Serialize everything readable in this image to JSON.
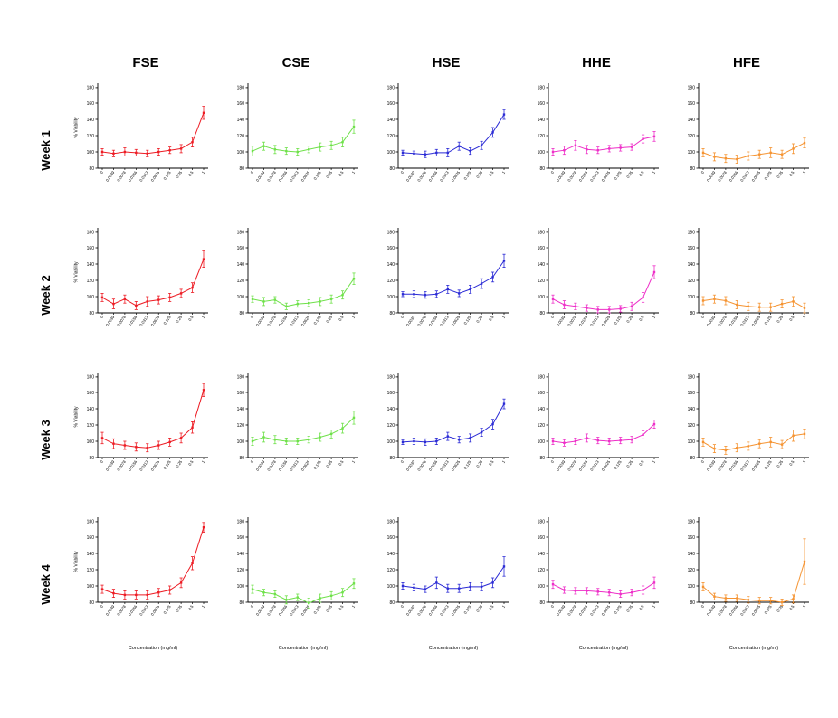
{
  "page": {
    "background": "#ffffff"
  },
  "columns": [
    {
      "label": "FSE",
      "color": "#ed1c24"
    },
    {
      "label": "CSE",
      "color": "#6fe14a"
    },
    {
      "label": "HSE",
      "color": "#2b2bd5"
    },
    {
      "label": "HHE",
      "color": "#ee2fc8"
    },
    {
      "label": "HFE",
      "color": "#f59331"
    }
  ],
  "rows": [
    {
      "label": "Week 1"
    },
    {
      "label": "Week 2"
    },
    {
      "label": "Week 3"
    },
    {
      "label": "Week 4"
    }
  ],
  "axis": {
    "ylabel": "% Viability",
    "xlabel": "Concentration (mg/ml)",
    "ylim": [
      80,
      180
    ],
    "yticks": [
      80,
      100,
      120,
      140,
      160,
      180
    ],
    "xticklabels": [
      "0",
      "0.0039",
      "0.0078",
      "0.0156",
      "0.0313",
      "0.0625",
      "0.125",
      "0.25",
      "0.5",
      "1"
    ]
  },
  "chart_data": [
    {
      "type": "line",
      "week": "Week 1",
      "series": "FSE",
      "x": [
        0,
        0.0039,
        0.0078,
        0.0156,
        0.0313,
        0.0625,
        0.125,
        0.25,
        0.5,
        1
      ],
      "values": [
        100,
        98,
        100,
        99,
        98,
        100,
        102,
        104,
        112,
        148
      ],
      "errors": [
        4,
        4,
        5,
        4,
        4,
        4,
        4,
        5,
        6,
        8
      ]
    },
    {
      "type": "line",
      "week": "Week 1",
      "series": "CSE",
      "x": [
        0,
        0.0039,
        0.0078,
        0.0156,
        0.0313,
        0.0625,
        0.125,
        0.25,
        0.5,
        1
      ],
      "values": [
        101,
        107,
        103,
        101,
        100,
        103,
        106,
        108,
        112,
        131
      ],
      "errors": [
        6,
        5,
        5,
        4,
        4,
        4,
        5,
        5,
        6,
        8
      ]
    },
    {
      "type": "line",
      "week": "Week 1",
      "series": "HSE",
      "x": [
        0,
        0.0039,
        0.0078,
        0.0156,
        0.0313,
        0.0625,
        0.125,
        0.25,
        0.5,
        1
      ],
      "values": [
        99,
        98,
        97,
        99,
        99,
        107,
        101,
        108,
        124,
        146
      ],
      "errors": [
        3,
        3,
        4,
        4,
        5,
        5,
        4,
        5,
        6,
        6
      ]
    },
    {
      "type": "line",
      "week": "Week 1",
      "series": "HHE",
      "x": [
        0,
        0.0039,
        0.0078,
        0.0156,
        0.0313,
        0.0625,
        0.125,
        0.25,
        0.5,
        1
      ],
      "values": [
        100,
        102,
        108,
        103,
        102,
        104,
        105,
        106,
        116,
        119
      ],
      "errors": [
        4,
        5,
        6,
        5,
        4,
        4,
        4,
        4,
        5,
        6
      ]
    },
    {
      "type": "line",
      "week": "Week 1",
      "series": "HFE",
      "x": [
        0,
        0.0039,
        0.0078,
        0.0156,
        0.0313,
        0.0625,
        0.125,
        0.25,
        0.5,
        1
      ],
      "values": [
        99,
        94,
        92,
        91,
        95,
        97,
        99,
        97,
        104,
        111
      ],
      "errors": [
        5,
        5,
        5,
        5,
        5,
        5,
        6,
        5,
        6,
        6
      ]
    },
    {
      "type": "line",
      "week": "Week 2",
      "series": "FSE",
      "x": [
        0,
        0.0039,
        0.0078,
        0.0156,
        0.0313,
        0.0625,
        0.125,
        0.25,
        0.5,
        1
      ],
      "values": [
        99,
        91,
        97,
        89,
        94,
        96,
        99,
        104,
        111,
        146
      ],
      "errors": [
        5,
        6,
        5,
        5,
        6,
        5,
        5,
        5,
        6,
        10
      ]
    },
    {
      "type": "line",
      "week": "Week 2",
      "series": "CSE",
      "x": [
        0,
        0.0039,
        0.0078,
        0.0156,
        0.0313,
        0.0625,
        0.125,
        0.25,
        0.5,
        1
      ],
      "values": [
        97,
        94,
        96,
        88,
        91,
        92,
        94,
        97,
        102,
        122
      ],
      "errors": [
        4,
        5,
        4,
        4,
        4,
        4,
        5,
        5,
        5,
        7
      ]
    },
    {
      "type": "line",
      "week": "Week 2",
      "series": "HSE",
      "x": [
        0,
        0.0039,
        0.0078,
        0.0156,
        0.0313,
        0.0625,
        0.125,
        0.25,
        0.5,
        1
      ],
      "values": [
        103,
        103,
        102,
        103,
        109,
        104,
        109,
        116,
        124,
        144
      ],
      "errors": [
        3,
        4,
        4,
        4,
        5,
        4,
        5,
        6,
        6,
        8
      ]
    },
    {
      "type": "line",
      "week": "Week 2",
      "series": "HHE",
      "x": [
        0,
        0.0039,
        0.0078,
        0.0156,
        0.0313,
        0.0625,
        0.125,
        0.25,
        0.5,
        1
      ],
      "values": [
        97,
        90,
        88,
        86,
        84,
        84,
        85,
        88,
        99,
        130
      ],
      "errors": [
        5,
        5,
        4,
        4,
        4,
        4,
        4,
        5,
        6,
        8
      ]
    },
    {
      "type": "line",
      "week": "Week 2",
      "series": "HFE",
      "x": [
        0,
        0.0039,
        0.0078,
        0.0156,
        0.0313,
        0.0625,
        0.125,
        0.25,
        0.5,
        1
      ],
      "values": [
        95,
        97,
        95,
        90,
        88,
        87,
        87,
        91,
        94,
        86
      ],
      "errors": [
        5,
        5,
        5,
        5,
        5,
        5,
        5,
        5,
        6,
        6
      ]
    },
    {
      "type": "line",
      "week": "Week 3",
      "series": "FSE",
      "x": [
        0,
        0.0039,
        0.0078,
        0.0156,
        0.0313,
        0.0625,
        0.125,
        0.25,
        0.5,
        1
      ],
      "values": [
        104,
        97,
        95,
        93,
        92,
        95,
        99,
        104,
        117,
        163
      ],
      "errors": [
        7,
        6,
        5,
        5,
        5,
        5,
        5,
        6,
        7,
        8
      ]
    },
    {
      "type": "line",
      "week": "Week 3",
      "series": "CSE",
      "x": [
        0,
        0.0039,
        0.0078,
        0.0156,
        0.0313,
        0.0625,
        0.125,
        0.25,
        0.5,
        1
      ],
      "values": [
        100,
        105,
        102,
        100,
        100,
        102,
        105,
        109,
        116,
        129
      ],
      "errors": [
        5,
        6,
        5,
        4,
        4,
        4,
        5,
        5,
        6,
        8
      ]
    },
    {
      "type": "line",
      "week": "Week 3",
      "series": "HSE",
      "x": [
        0,
        0.0039,
        0.0078,
        0.0156,
        0.0313,
        0.0625,
        0.125,
        0.25,
        0.5,
        1
      ],
      "values": [
        99,
        100,
        99,
        100,
        106,
        102,
        104,
        111,
        121,
        146
      ],
      "errors": [
        3,
        4,
        4,
        4,
        5,
        4,
        5,
        5,
        6,
        6
      ]
    },
    {
      "type": "line",
      "week": "Week 3",
      "series": "HHE",
      "x": [
        0,
        0.0039,
        0.0078,
        0.0156,
        0.0313,
        0.0625,
        0.125,
        0.25,
        0.5,
        1
      ],
      "values": [
        100,
        98,
        100,
        104,
        101,
        100,
        101,
        102,
        108,
        121
      ],
      "errors": [
        4,
        4,
        4,
        5,
        4,
        4,
        4,
        4,
        5,
        5
      ]
    },
    {
      "type": "line",
      "week": "Week 3",
      "series": "HFE",
      "x": [
        0,
        0.0039,
        0.0078,
        0.0156,
        0.0313,
        0.0625,
        0.125,
        0.25,
        0.5,
        1
      ],
      "values": [
        99,
        91,
        89,
        92,
        94,
        97,
        99,
        96,
        107,
        109
      ],
      "errors": [
        5,
        5,
        5,
        5,
        5,
        5,
        6,
        5,
        7,
        6
      ]
    },
    {
      "type": "line",
      "week": "Week 4",
      "series": "FSE",
      "x": [
        0,
        0.0039,
        0.0078,
        0.0156,
        0.0313,
        0.0625,
        0.125,
        0.25,
        0.5,
        1
      ],
      "values": [
        96,
        91,
        89,
        89,
        89,
        92,
        95,
        104,
        128,
        172
      ],
      "errors": [
        5,
        5,
        5,
        5,
        5,
        5,
        5,
        6,
        8,
        6
      ]
    },
    {
      "type": "line",
      "week": "Week 4",
      "series": "CSE",
      "x": [
        0,
        0.0039,
        0.0078,
        0.0156,
        0.0313,
        0.0625,
        0.125,
        0.25,
        0.5,
        1
      ],
      "values": [
        96,
        92,
        90,
        83,
        86,
        79,
        85,
        88,
        92,
        103
      ],
      "errors": [
        5,
        4,
        4,
        5,
        4,
        6,
        5,
        5,
        5,
        6
      ]
    },
    {
      "type": "line",
      "week": "Week 4",
      "series": "HSE",
      "x": [
        0,
        0.0039,
        0.0078,
        0.0156,
        0.0313,
        0.0625,
        0.125,
        0.25,
        0.5,
        1
      ],
      "values": [
        100,
        98,
        96,
        104,
        97,
        97,
        99,
        99,
        104,
        124
      ],
      "errors": [
        4,
        4,
        4,
        7,
        5,
        5,
        5,
        5,
        6,
        12
      ]
    },
    {
      "type": "line",
      "week": "Week 4",
      "series": "HHE",
      "x": [
        0,
        0.0039,
        0.0078,
        0.0156,
        0.0313,
        0.0625,
        0.125,
        0.25,
        0.5,
        1
      ],
      "values": [
        102,
        95,
        94,
        94,
        93,
        92,
        90,
        92,
        95,
        104
      ],
      "errors": [
        5,
        4,
        4,
        4,
        4,
        4,
        4,
        4,
        5,
        7
      ]
    },
    {
      "type": "line",
      "week": "Week 4",
      "series": "HFE",
      "x": [
        0,
        0.0039,
        0.0078,
        0.0156,
        0.0313,
        0.0625,
        0.125,
        0.25,
        0.5,
        1
      ],
      "values": [
        99,
        87,
        85,
        85,
        83,
        82,
        82,
        80,
        84,
        130
      ],
      "errors": [
        5,
        4,
        4,
        4,
        4,
        4,
        4,
        4,
        5,
        28
      ]
    }
  ]
}
